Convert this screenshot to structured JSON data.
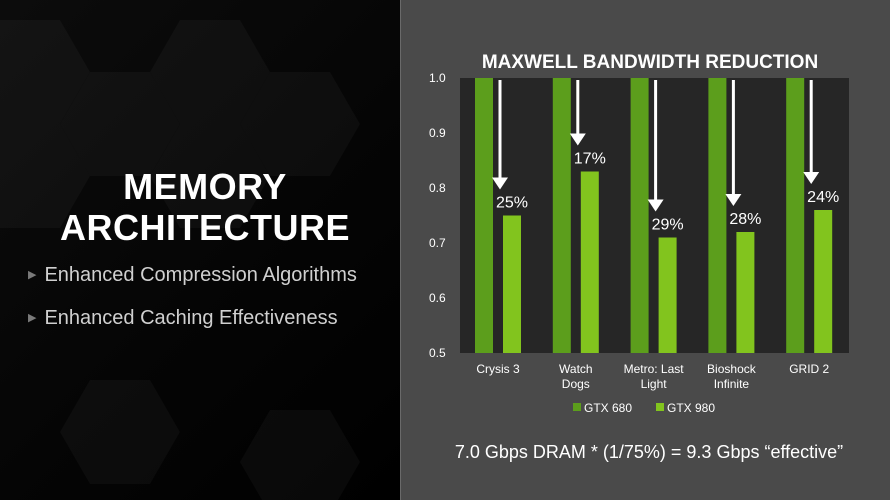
{
  "slide": {
    "title_line1": "MEMORY",
    "title_line2": "ARCHITECTURE",
    "bullets": [
      "Enhanced Compression Algorithms",
      "Enhanced Caching Effectiveness"
    ],
    "footnote": "7.0 Gbps DRAM * (1/75%) = 9.3 Gbps “effective”"
  },
  "colors": {
    "gtx680": "#5c9e1c",
    "gtx980": "#82c41e",
    "plot_bg": "#262626",
    "panel_bg": "#4a4a4a"
  },
  "chart_data": {
    "type": "bar",
    "title": "MAXWELL BANDWIDTH REDUCTION",
    "categories": [
      [
        "Crysis 3"
      ],
      [
        "Watch",
        "Dogs"
      ],
      [
        "Metro: Last",
        "Light"
      ],
      [
        "Bioshock",
        "Infinite"
      ],
      [
        "GRID 2"
      ]
    ],
    "series": [
      {
        "name": "GTX 680",
        "values": [
          1.0,
          1.0,
          1.0,
          1.0,
          1.0
        ]
      },
      {
        "name": "GTX 980",
        "values": [
          0.75,
          0.83,
          0.71,
          0.72,
          0.76
        ]
      }
    ],
    "reduction_labels": [
      "25%",
      "17%",
      "29%",
      "28%",
      "24%"
    ],
    "yticks": [
      "1.0",
      "0.9",
      "0.8",
      "0.7",
      "0.6",
      "0.5"
    ],
    "ylim": [
      0.5,
      1.0
    ],
    "legend_position": "bottom",
    "grid": false
  }
}
